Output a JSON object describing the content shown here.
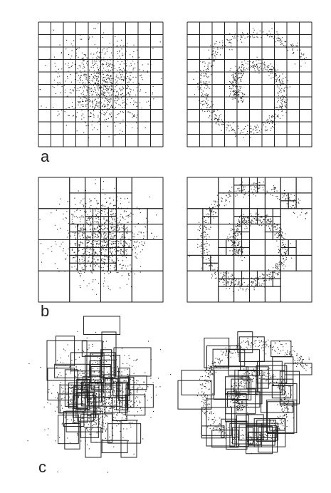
{
  "labels": {
    "a": "a",
    "b": "b",
    "c": "c"
  },
  "panels": [
    {
      "id": "a-left",
      "partition": "uniform-grid",
      "distribution": "gaussian-blob",
      "grid": 10
    },
    {
      "id": "a-right",
      "partition": "uniform-grid",
      "distribution": "spiral",
      "grid": 10
    },
    {
      "id": "b-left",
      "partition": "adaptive-quadtree",
      "distribution": "gaussian-blob"
    },
    {
      "id": "b-right",
      "partition": "adaptive-quadtree",
      "distribution": "spiral"
    },
    {
      "id": "c-left",
      "partition": "overlapping-boxes",
      "distribution": "gaussian-blob"
    },
    {
      "id": "c-right",
      "partition": "overlapping-boxes",
      "distribution": "spiral"
    }
  ],
  "colors": {
    "ink": "#222222",
    "background": "#ffffff"
  }
}
